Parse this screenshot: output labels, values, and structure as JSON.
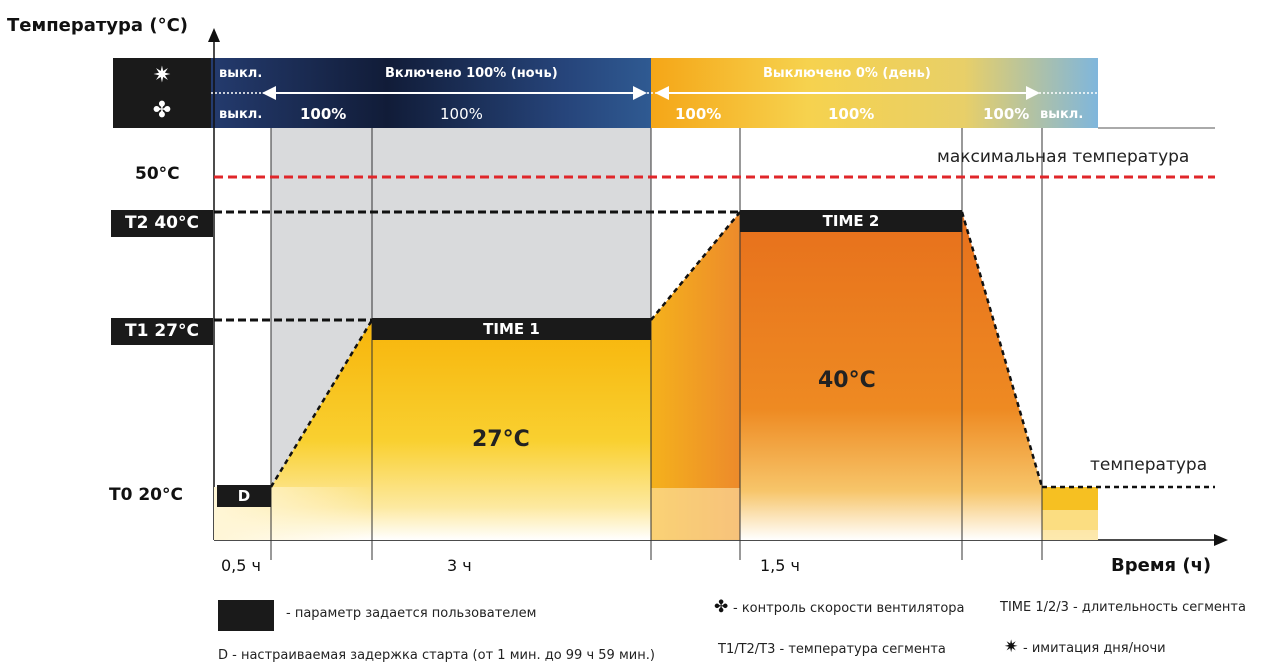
{
  "y_axis_label": "Температура (°C)",
  "x_axis_label": "Время (ч)",
  "levels": {
    "max": "50°C",
    "t2": "T2 40°C",
    "t1": "T1 27°C",
    "t0": "T0 20°C"
  },
  "band": {
    "sun_row": {
      "off": "выкл.",
      "night": "Включено 100% (ночь)",
      "day": "Выключено 0% (день)"
    },
    "fan_row": {
      "off_left": "выкл.",
      "v1": "100%",
      "v2": "100%",
      "v3": "100%",
      "v4": "100%",
      "v5": "100%",
      "off_right": "выкл."
    }
  },
  "segments": {
    "delay": "D",
    "time1": "TIME 1",
    "time2": "TIME 2",
    "temp1": "27°C",
    "temp2": "40°C"
  },
  "right_labels": {
    "max_temp": "максимальная температура",
    "temp": "температура"
  },
  "x_ticks": [
    "0,5 ч",
    "3 ч",
    "1,5 ч"
  ],
  "legend": {
    "user_param": "- параметр задается пользователем",
    "delay": "D - настраиваемая задержка старта (от 1 мин. до 99 ч 59 мин.)",
    "fan": "- контроль скорости вентилятора",
    "temps": "T1/T2/T3 - температура сегмента",
    "time": "TIME 1/2/3 - длительность сегмента",
    "daynight": "- имитация дня/ночи"
  },
  "icons": [
    "sun-icon",
    "fan-icon",
    "arrow-left-icon",
    "arrow-right-icon"
  ],
  "colors": {
    "max_line": "#e0262a",
    "segment_bar": "#1a1a1a",
    "fill_yellow": "#f5c00f",
    "fill_orange": "#e9761e",
    "shade": "#d9dadc",
    "night": "#1d2d55",
    "day": "#f0c43a"
  }
}
